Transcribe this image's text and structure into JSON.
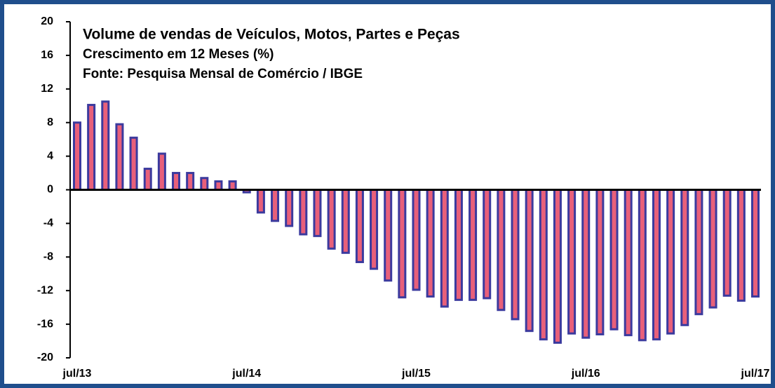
{
  "chart_data": {
    "type": "bar",
    "title": "Volume de vendas de Veículos, Motos, Partes e Peças",
    "subtitle": "Crescimento em 12 Meses (%)",
    "source": "Fonte: Pesquisa Mensal de Comércio / IBGE",
    "categories": [
      "jul/13",
      null,
      null,
      null,
      null,
      null,
      null,
      null,
      null,
      null,
      null,
      null,
      "jul/14",
      null,
      null,
      null,
      null,
      null,
      null,
      null,
      null,
      null,
      null,
      null,
      "jul/15",
      null,
      null,
      null,
      null,
      null,
      null,
      null,
      null,
      null,
      null,
      null,
      "jul/16",
      null,
      null,
      null,
      null,
      null,
      null,
      null,
      null,
      null,
      null,
      null,
      "jul/17"
    ],
    "values": [
      8.0,
      10.1,
      10.5,
      7.8,
      6.2,
      2.5,
      4.3,
      2.0,
      2.0,
      1.4,
      1.0,
      1.0,
      -0.3,
      -2.7,
      -3.7,
      -4.3,
      -5.3,
      -5.5,
      -7.0,
      -7.5,
      -8.6,
      -9.4,
      -10.8,
      -12.8,
      -11.9,
      -12.7,
      -13.9,
      -13.1,
      -13.1,
      -12.9,
      -14.3,
      -15.4,
      -16.8,
      -17.8,
      -18.2,
      -17.1,
      -17.6,
      -17.2,
      -16.6,
      -17.3,
      -17.9,
      -17.8,
      -17.1,
      -16.1,
      -14.8,
      -14.0,
      -12.6,
      -13.2,
      -12.7
    ],
    "color": "#e8607a",
    "edge_color": "#3b3a9e",
    "ylim": [
      -20,
      20
    ],
    "yticks": [
      20,
      16,
      12,
      8,
      4,
      0,
      -4,
      -8,
      -12,
      -16,
      -20
    ],
    "grid": false
  }
}
